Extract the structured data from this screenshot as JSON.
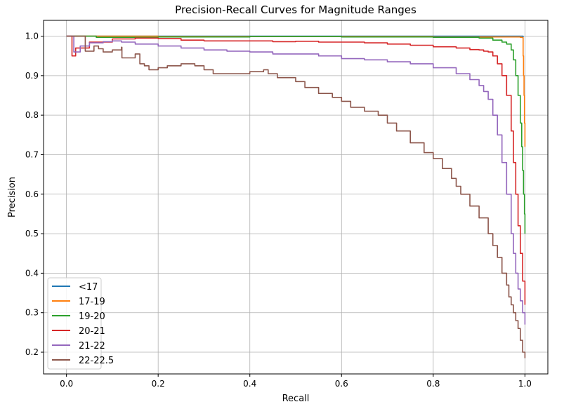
{
  "chart_data": {
    "type": "line",
    "title": "Precision-Recall Curves for Magnitude Ranges",
    "xlabel": "Recall",
    "ylabel": "Precision",
    "xlim": [
      -0.05,
      1.05
    ],
    "ylim": [
      0.145,
      1.04
    ],
    "xticks": [
      "0.0",
      "0.2",
      "0.4",
      "0.6",
      "0.8",
      "1.0"
    ],
    "yticks": [
      "0.2",
      "0.3",
      "0.4",
      "0.5",
      "0.6",
      "0.7",
      "0.8",
      "0.9",
      "1.0"
    ],
    "grid": true,
    "legend_position": "lower-left",
    "series": [
      {
        "name": "<17",
        "color": "#1f77b4",
        "x": [
          0.0,
          0.5,
          0.995,
          0.996,
          0.996
        ],
        "y": [
          1.0,
          1.0,
          1.0,
          1.0,
          0.997
        ]
      },
      {
        "name": "17-19",
        "color": "#ff7f0e",
        "x": [
          0.0,
          0.2,
          0.5,
          0.8,
          0.99,
          0.995,
          0.996,
          0.997,
          0.998,
          0.999,
          1.0
        ],
        "y": [
          1.0,
          0.999,
          0.999,
          0.998,
          0.997,
          0.996,
          0.95,
          0.9,
          0.85,
          0.78,
          0.72
        ]
      },
      {
        "name": "19-20",
        "color": "#2ca02c",
        "x": [
          0.0,
          0.06,
          0.065,
          0.2,
          0.4,
          0.6,
          0.8,
          0.9,
          0.93,
          0.95,
          0.96,
          0.97,
          0.975,
          0.98,
          0.985,
          0.99,
          0.993,
          0.995,
          0.997,
          0.999,
          1.0
        ],
        "y": [
          1.0,
          1.0,
          0.997,
          0.998,
          0.999,
          0.998,
          0.997,
          0.995,
          0.99,
          0.985,
          0.98,
          0.965,
          0.94,
          0.9,
          0.85,
          0.78,
          0.72,
          0.66,
          0.6,
          0.55,
          0.5
        ]
      },
      {
        "name": "20-21",
        "color": "#d62728",
        "x": [
          0.0,
          0.011,
          0.012,
          0.02,
          0.05,
          0.1,
          0.15,
          0.2,
          0.25,
          0.3,
          0.35,
          0.4,
          0.45,
          0.5,
          0.55,
          0.6,
          0.65,
          0.7,
          0.75,
          0.8,
          0.85,
          0.88,
          0.9,
          0.91,
          0.92,
          0.93,
          0.94,
          0.95,
          0.96,
          0.97,
          0.975,
          0.98,
          0.985,
          0.99,
          0.995,
          1.0
        ],
        "y": [
          1.0,
          1.0,
          0.95,
          0.97,
          0.985,
          0.993,
          0.995,
          0.994,
          0.99,
          0.988,
          0.988,
          0.988,
          0.986,
          0.987,
          0.985,
          0.985,
          0.983,
          0.98,
          0.977,
          0.973,
          0.97,
          0.966,
          0.965,
          0.962,
          0.96,
          0.95,
          0.93,
          0.9,
          0.85,
          0.76,
          0.68,
          0.6,
          0.52,
          0.45,
          0.38,
          0.32
        ]
      },
      {
        "name": "21-22",
        "color": "#9467bd",
        "x": [
          0.0,
          0.015,
          0.016,
          0.03,
          0.05,
          0.08,
          0.1,
          0.12,
          0.15,
          0.2,
          0.25,
          0.3,
          0.35,
          0.4,
          0.45,
          0.5,
          0.55,
          0.6,
          0.65,
          0.7,
          0.75,
          0.8,
          0.85,
          0.88,
          0.9,
          0.91,
          0.92,
          0.93,
          0.94,
          0.95,
          0.96,
          0.97,
          0.975,
          0.98,
          0.985,
          0.99,
          0.995,
          1.0
        ],
        "y": [
          1.0,
          1.0,
          0.96,
          0.975,
          0.983,
          0.986,
          0.988,
          0.985,
          0.98,
          0.975,
          0.97,
          0.965,
          0.962,
          0.96,
          0.955,
          0.955,
          0.95,
          0.943,
          0.94,
          0.935,
          0.93,
          0.92,
          0.905,
          0.89,
          0.875,
          0.86,
          0.84,
          0.8,
          0.75,
          0.68,
          0.6,
          0.5,
          0.45,
          0.4,
          0.36,
          0.33,
          0.3,
          0.27
        ]
      },
      {
        "name": "22-22.5",
        "color": "#8c564b",
        "x": [
          0.0,
          0.04,
          0.041,
          0.06,
          0.07,
          0.08,
          0.1,
          0.12,
          0.121,
          0.15,
          0.16,
          0.17,
          0.18,
          0.2,
          0.22,
          0.25,
          0.28,
          0.3,
          0.32,
          0.35,
          0.4,
          0.43,
          0.44,
          0.46,
          0.5,
          0.52,
          0.55,
          0.58,
          0.6,
          0.62,
          0.65,
          0.68,
          0.7,
          0.72,
          0.75,
          0.78,
          0.8,
          0.82,
          0.84,
          0.85,
          0.86,
          0.88,
          0.9,
          0.92,
          0.93,
          0.94,
          0.95,
          0.96,
          0.965,
          0.97,
          0.975,
          0.98,
          0.985,
          0.99,
          0.995,
          1.0
        ],
        "y": [
          1.0,
          1.0,
          0.962,
          0.975,
          0.968,
          0.96,
          0.965,
          0.972,
          0.945,
          0.955,
          0.93,
          0.925,
          0.915,
          0.92,
          0.925,
          0.93,
          0.925,
          0.915,
          0.905,
          0.905,
          0.91,
          0.915,
          0.905,
          0.895,
          0.885,
          0.87,
          0.855,
          0.845,
          0.835,
          0.82,
          0.81,
          0.8,
          0.78,
          0.76,
          0.73,
          0.705,
          0.69,
          0.665,
          0.64,
          0.62,
          0.6,
          0.57,
          0.54,
          0.5,
          0.47,
          0.44,
          0.4,
          0.37,
          0.34,
          0.32,
          0.3,
          0.28,
          0.26,
          0.23,
          0.2,
          0.185
        ]
      }
    ]
  }
}
